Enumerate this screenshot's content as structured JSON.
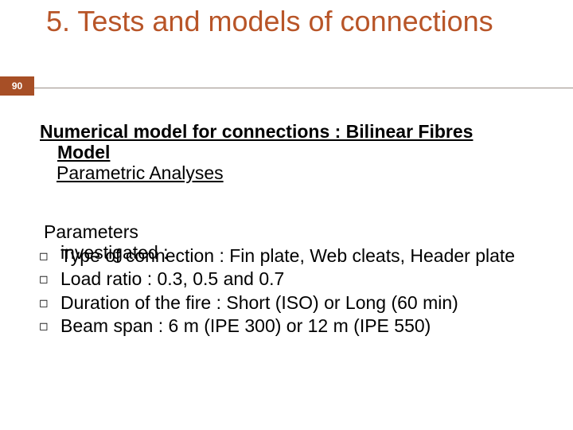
{
  "slide_number": "90",
  "title": "5. Tests and models of connections",
  "subheading_line1": "Numerical model for connections : Bilinear Fibres",
  "subheading_line2_a": "Model",
  "subheading_line2_b": "Parametric Analyses",
  "parameters_label": "Parameters",
  "overlay_investigated": "investigated :",
  "overlay_typeof": "Type of connection : Fin plate, Web cleats, Header",
  "bullets": [
    "Type of connection : Fin plate, Web cleats, Header plate",
    "Load ratio : 0.3, 0.5 and 0.7",
    "Duration of the fire : Short (ISO) or Long (60 min)",
    "Beam span : 6 m (IPE 300) or 12 m (IPE 550)"
  ],
  "colors": {
    "title": "#b85528",
    "badge_bg": "#a74f26",
    "rule": "#9a8f87"
  }
}
